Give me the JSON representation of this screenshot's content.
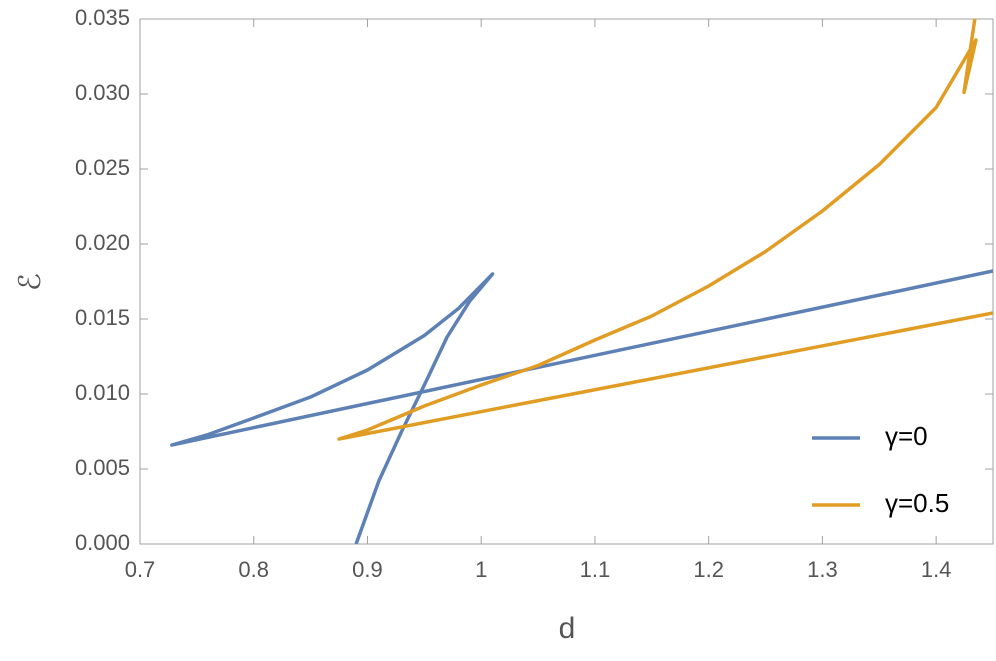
{
  "chart_data": {
    "type": "line",
    "xlabel": "d",
    "ylabel": "ℰ",
    "xlim": [
      0.7,
      1.45
    ],
    "ylim": [
      0,
      0.035
    ],
    "xticks": [
      0.7,
      0.8,
      0.9,
      1.0,
      1.1,
      1.2,
      1.3,
      1.4
    ],
    "yticks": [
      {
        "value": 0,
        "label": "0.000"
      },
      {
        "value": 0.005,
        "label": "0.005"
      },
      {
        "value": 0.01,
        "label": "0.010"
      },
      {
        "value": 0.015,
        "label": "0.015"
      },
      {
        "value": 0.02,
        "label": "0.020"
      },
      {
        "value": 0.025,
        "label": "0.025"
      },
      {
        "value": 0.03,
        "label": "0.030"
      },
      {
        "value": 0.035,
        "label": "0.035"
      }
    ],
    "legend": "bottom-right",
    "series": [
      {
        "name": "γ=0",
        "color": "#5e81b5",
        "x": [
          1.45,
          0.728,
          0.76,
          0.8,
          0.85,
          0.9,
          0.95,
          0.98,
          1.01,
          0.99,
          0.97,
          0.95,
          0.93,
          0.91,
          0.89
        ],
        "values": [
          0.0182,
          0.0066,
          0.0073,
          0.0084,
          0.0098,
          0.0116,
          0.0139,
          0.0157,
          0.018,
          0.0162,
          0.0138,
          0.0106,
          0.0075,
          0.0042,
          0.0
        ]
      },
      {
        "name": "γ=0.5",
        "color": "#e19c24",
        "x": [
          1.45,
          0.875,
          0.9,
          0.95,
          1.0,
          1.05,
          1.1,
          1.15,
          1.2,
          1.25,
          1.3,
          1.35,
          1.4,
          1.435,
          1.4245,
          1.434
        ],
        "values": [
          0.0154,
          0.007,
          0.0076,
          0.0092,
          0.0106,
          0.0119,
          0.0136,
          0.0152,
          0.0172,
          0.0195,
          0.0222,
          0.0253,
          0.0291,
          0.0336,
          0.0301,
          0.035
        ]
      }
    ]
  }
}
